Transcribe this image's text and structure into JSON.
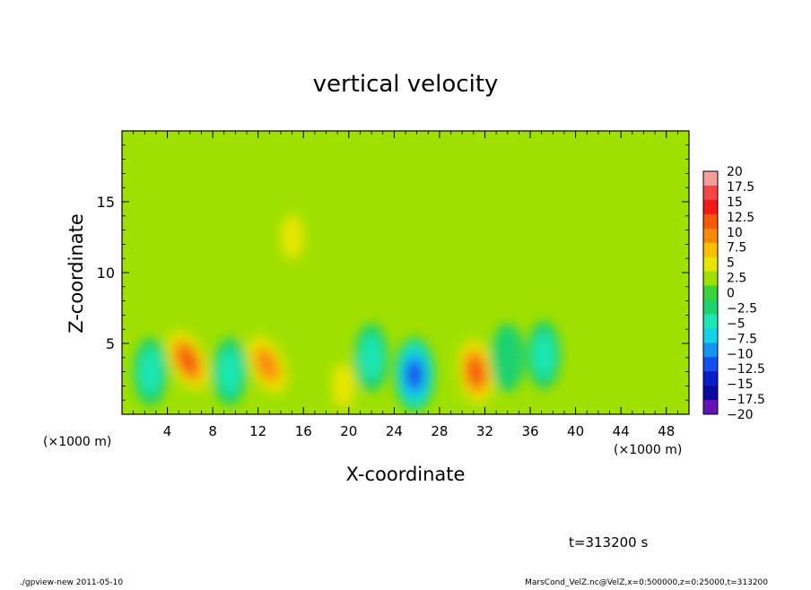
{
  "chart_data": {
    "type": "heatmap",
    "title": "vertical velocity",
    "xlabel": "X-coordinate",
    "ylabel": "Z-coordinate",
    "x_unit_left": "(×1000 m)",
    "x_unit_right": "(×1000 m)",
    "xlim": [
      0,
      50
    ],
    "ylim": [
      0,
      20
    ],
    "x_ticks": [
      4,
      8,
      12,
      16,
      20,
      24,
      28,
      32,
      36,
      40,
      44,
      48
    ],
    "y_ticks": [
      5,
      10,
      15
    ],
    "background_value": 1.5,
    "features": [
      {
        "x": 5.8,
        "z": 3.8,
        "value": 12,
        "kind": "updraft"
      },
      {
        "x": 12.8,
        "z": 3.5,
        "value": 11,
        "kind": "updraft"
      },
      {
        "x": 25.8,
        "z": 2.8,
        "value": -13,
        "kind": "downdraft"
      },
      {
        "x": 31.2,
        "z": 3.0,
        "value": 12,
        "kind": "updraft"
      },
      {
        "x": 37.2,
        "z": 4.2,
        "value": -6,
        "kind": "downdraft"
      },
      {
        "x": 15.0,
        "z": 12.5,
        "value": 5,
        "kind": "weak updraft"
      },
      {
        "x": 19.5,
        "z": 2.0,
        "value": 5,
        "kind": "weak updraft"
      },
      {
        "x": 2.5,
        "z": 3.0,
        "value": -4,
        "kind": "weak downdraft"
      },
      {
        "x": 9.5,
        "z": 3.0,
        "value": -4,
        "kind": "weak downdraft"
      },
      {
        "x": 22.0,
        "z": 4.0,
        "value": -4,
        "kind": "weak downdraft"
      },
      {
        "x": 34.0,
        "z": 4.0,
        "value": -3,
        "kind": "weak downdraft"
      },
      {
        "x": 10.0,
        "z": 10.0,
        "value": 3,
        "kind": "weak updraft"
      }
    ],
    "colorbar": {
      "labels": [
        "20",
        "17.5",
        "15",
        "12.5",
        "10",
        "7.5",
        "5",
        "2.5",
        "0",
        "−2.5",
        "−5",
        "−7.5",
        "−10",
        "−12.5",
        "−15",
        "−17.5",
        "−20"
      ],
      "colors": [
        "#f59c9c",
        "#f54646",
        "#f01a1a",
        "#f55a0a",
        "#f88a0a",
        "#f8c000",
        "#e6e600",
        "#a0e000",
        "#3cd23c",
        "#1ed26e",
        "#1ee6b4",
        "#14d2e6",
        "#1496f0",
        "#1450f0",
        "#0a1ec8",
        "#0a0aa0",
        "#6414b4"
      ]
    },
    "footer_time": "t=313200 s",
    "footer_left": "./gpview-new   2011-05-10",
    "footer_right": "MarsCond_VelZ.nc@VelZ,x=0:500000,z=0:25000,t=313200"
  }
}
